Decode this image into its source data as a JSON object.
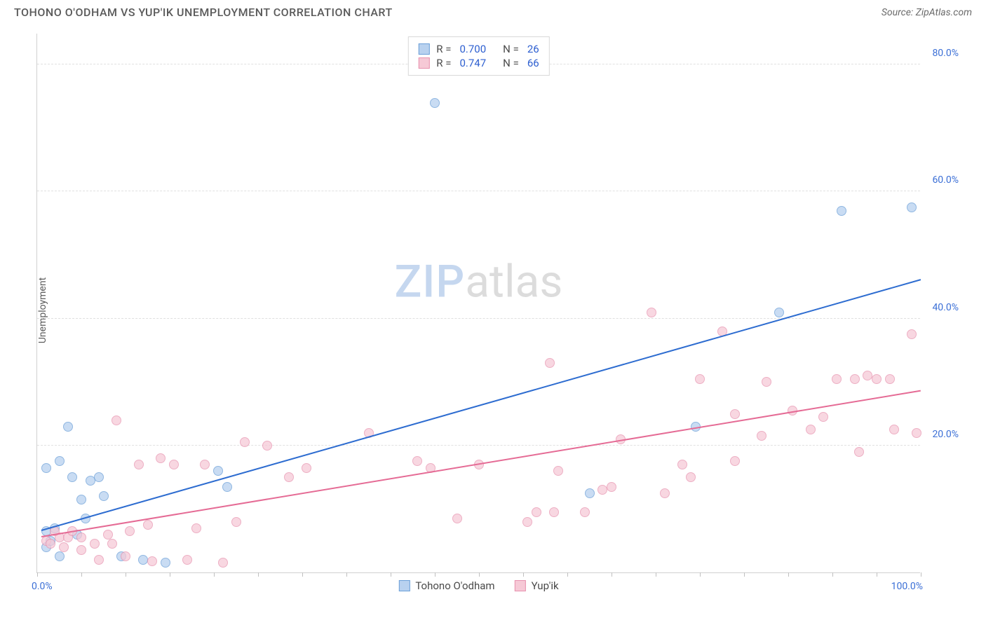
{
  "header": {
    "title": "TOHONO O'ODHAM VS YUP'IK UNEMPLOYMENT CORRELATION CHART",
    "source": "Source: ZipAtlas.com"
  },
  "watermark": {
    "part1": "ZIP",
    "part2": "atlas"
  },
  "chart": {
    "type": "scatter",
    "y_axis_label": "Unemployment",
    "background_color": "#ffffff",
    "grid_color": "#e0e0e0",
    "axis_color": "#d0d0d0",
    "xlim": [
      0,
      100
    ],
    "ylim": [
      0,
      85
    ],
    "x_ticks": [
      0,
      5,
      10,
      15,
      20,
      25,
      30,
      35,
      40,
      45,
      50,
      55,
      60,
      65,
      70,
      75,
      80,
      85,
      90,
      95,
      100
    ],
    "x_tick_labels": [
      {
        "value": 0,
        "label": "0.0%"
      },
      {
        "value": 100,
        "label": "100.0%"
      }
    ],
    "y_gridlines": [
      20,
      40,
      60,
      80
    ],
    "y_tick_labels": [
      {
        "value": 20,
        "label": "20.0%"
      },
      {
        "value": 40,
        "label": "40.0%"
      },
      {
        "value": 60,
        "label": "60.0%"
      },
      {
        "value": 80,
        "label": "80.0%"
      }
    ],
    "tick_label_color": "#3b6fd6",
    "axis_label_color": "#5a5a5a",
    "axis_label_fontsize": 14,
    "tick_label_fontsize": 14,
    "series": [
      {
        "name": "Tohono O'odham",
        "marker_fill": "#b8d1ef",
        "marker_stroke": "#6b9fd8",
        "marker_opacity": 0.75,
        "marker_size": 14,
        "trend_color": "#2d6cd0",
        "trend_width": 2,
        "trend_start": {
          "x": 0.5,
          "y": 6.5
        },
        "trend_end": {
          "x": 100,
          "y": 46
        },
        "r_value": "0.700",
        "n_value": "26",
        "points": [
          {
            "x": 1,
            "y": 4
          },
          {
            "x": 1.5,
            "y": 5
          },
          {
            "x": 1,
            "y": 6.5
          },
          {
            "x": 2,
            "y": 7
          },
          {
            "x": 3.5,
            "y": 23
          },
          {
            "x": 2.5,
            "y": 2.5
          },
          {
            "x": 1,
            "y": 16.5
          },
          {
            "x": 2.5,
            "y": 17.5
          },
          {
            "x": 4,
            "y": 15
          },
          {
            "x": 5,
            "y": 11.5
          },
          {
            "x": 6,
            "y": 14.5
          },
          {
            "x": 4.5,
            "y": 6
          },
          {
            "x": 5.5,
            "y": 8.5
          },
          {
            "x": 7,
            "y": 15
          },
          {
            "x": 7.5,
            "y": 12
          },
          {
            "x": 9.5,
            "y": 2.5
          },
          {
            "x": 12,
            "y": 2
          },
          {
            "x": 14.5,
            "y": 1.5
          },
          {
            "x": 20.5,
            "y": 16
          },
          {
            "x": 21.5,
            "y": 13.5
          },
          {
            "x": 45,
            "y": 74
          },
          {
            "x": 62.5,
            "y": 12.5
          },
          {
            "x": 74.5,
            "y": 23
          },
          {
            "x": 84,
            "y": 41
          },
          {
            "x": 91,
            "y": 57
          },
          {
            "x": 99,
            "y": 57.5
          }
        ]
      },
      {
        "name": "Yup'ik",
        "marker_fill": "#f6c9d6",
        "marker_stroke": "#e791ae",
        "marker_opacity": 0.72,
        "marker_size": 14,
        "trend_color": "#e56b95",
        "trend_width": 2,
        "trend_start": {
          "x": 0.5,
          "y": 5.5
        },
        "trend_end": {
          "x": 100,
          "y": 28.5
        },
        "r_value": "0.747",
        "n_value": "66",
        "points": [
          {
            "x": 1,
            "y": 5
          },
          {
            "x": 1.5,
            "y": 4.5
          },
          {
            "x": 2.5,
            "y": 5.5
          },
          {
            "x": 2,
            "y": 6.5
          },
          {
            "x": 3,
            "y": 4
          },
          {
            "x": 3.5,
            "y": 5.5
          },
          {
            "x": 4,
            "y": 6.5
          },
          {
            "x": 5,
            "y": 3.5
          },
          {
            "x": 5,
            "y": 5.5
          },
          {
            "x": 6.5,
            "y": 4.5
          },
          {
            "x": 7,
            "y": 2
          },
          {
            "x": 8,
            "y": 6
          },
          {
            "x": 8.5,
            "y": 4.5
          },
          {
            "x": 9,
            "y": 24
          },
          {
            "x": 10,
            "y": 2.5
          },
          {
            "x": 10.5,
            "y": 6.5
          },
          {
            "x": 11.5,
            "y": 17
          },
          {
            "x": 13,
            "y": 1.8
          },
          {
            "x": 14,
            "y": 18
          },
          {
            "x": 12.5,
            "y": 7.5
          },
          {
            "x": 15.5,
            "y": 17
          },
          {
            "x": 17,
            "y": 2
          },
          {
            "x": 18,
            "y": 7
          },
          {
            "x": 19,
            "y": 17
          },
          {
            "x": 21,
            "y": 1.5
          },
          {
            "x": 22.5,
            "y": 8
          },
          {
            "x": 23.5,
            "y": 20.5
          },
          {
            "x": 26,
            "y": 20
          },
          {
            "x": 28.5,
            "y": 15
          },
          {
            "x": 30.5,
            "y": 16.5
          },
          {
            "x": 37.5,
            "y": 22
          },
          {
            "x": 43,
            "y": 17.5
          },
          {
            "x": 44.5,
            "y": 16.5
          },
          {
            "x": 47.5,
            "y": 8.5
          },
          {
            "x": 50,
            "y": 17
          },
          {
            "x": 55.5,
            "y": 8
          },
          {
            "x": 56.5,
            "y": 9.5
          },
          {
            "x": 58.5,
            "y": 9.5
          },
          {
            "x": 58,
            "y": 33
          },
          {
            "x": 59,
            "y": 16
          },
          {
            "x": 62,
            "y": 9.5
          },
          {
            "x": 64,
            "y": 13
          },
          {
            "x": 65,
            "y": 13.5
          },
          {
            "x": 66,
            "y": 21
          },
          {
            "x": 69.5,
            "y": 41
          },
          {
            "x": 71,
            "y": 12.5
          },
          {
            "x": 73,
            "y": 17
          },
          {
            "x": 74,
            "y": 15
          },
          {
            "x": 75,
            "y": 30.5
          },
          {
            "x": 77.5,
            "y": 38
          },
          {
            "x": 79,
            "y": 25
          },
          {
            "x": 79,
            "y": 17.5
          },
          {
            "x": 82,
            "y": 21.5
          },
          {
            "x": 82.5,
            "y": 30
          },
          {
            "x": 85.5,
            "y": 25.5
          },
          {
            "x": 87.5,
            "y": 22.5
          },
          {
            "x": 89,
            "y": 24.5
          },
          {
            "x": 90.5,
            "y": 30.5
          },
          {
            "x": 92.5,
            "y": 30.5
          },
          {
            "x": 93,
            "y": 19
          },
          {
            "x": 94,
            "y": 31
          },
          {
            "x": 95,
            "y": 30.5
          },
          {
            "x": 96.5,
            "y": 30.5
          },
          {
            "x": 97,
            "y": 22.5
          },
          {
            "x": 99,
            "y": 37.5
          },
          {
            "x": 99.5,
            "y": 22
          }
        ]
      }
    ]
  },
  "legend_top": {
    "r_label": "R =",
    "n_label": "N ="
  }
}
